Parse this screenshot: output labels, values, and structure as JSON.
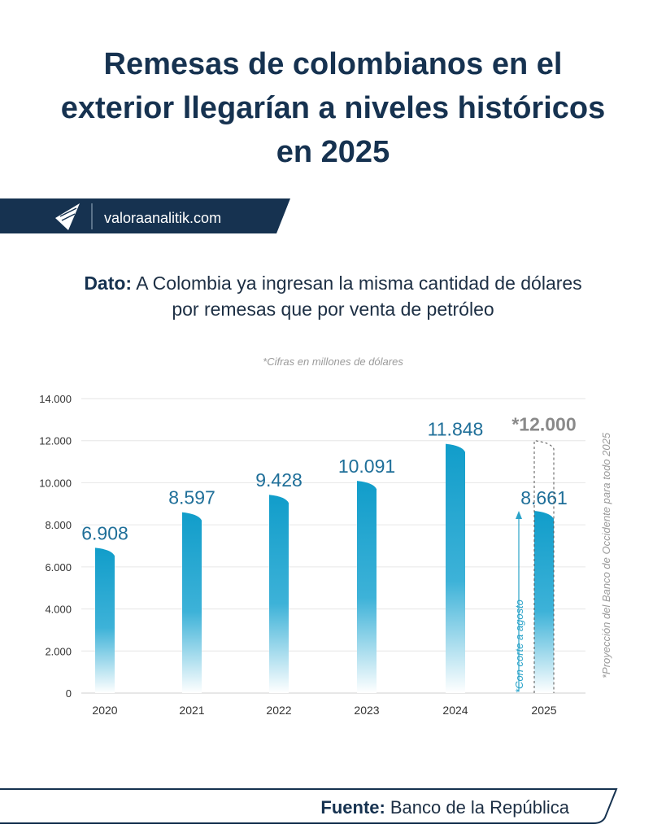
{
  "title_lines": [
    "Remesas de colombianos en el",
    "exterior llegarían a niveles históricos",
    "en 2025"
  ],
  "brand": {
    "site": "valoraanalitik.com",
    "logo_icon": "valora-paper-plane-logo"
  },
  "subtitle": {
    "lead": "Dato:",
    "line1": "A Colombia ya ingresan la misma cantidad de dólares",
    "line2": "por remesas que por venta de petróleo"
  },
  "units_note": "*Cifras en millones de dólares",
  "footer": {
    "lead": "Fuente:",
    "text": "Banco de la República"
  },
  "colors": {
    "navy": "#163250",
    "bar": "#16a2cc",
    "label": "#1f6f99",
    "projection": "#8a8a8a"
  },
  "chart_data": {
    "type": "bar",
    "categories": [
      "2020",
      "2021",
      "2022",
      "2023",
      "2024",
      "2025"
    ],
    "values": [
      6908,
      8597,
      9428,
      10091,
      11848,
      8661
    ],
    "data_labels": [
      "6.908",
      "8.597",
      "9.428",
      "10.091",
      "11.848",
      "8.661"
    ],
    "ylim": [
      0,
      14000
    ],
    "yticks": [
      "0",
      "2.000",
      "4.000",
      "6.000",
      "8.000",
      "10.000",
      "12.000",
      "14.000"
    ],
    "grid": true,
    "projection": {
      "category": "2025",
      "value": 12000,
      "label": "*12.000",
      "note": "*Proyección del Banco de Occidente para todo 2025"
    },
    "annotation_2025": "*Con corte a agosto"
  }
}
